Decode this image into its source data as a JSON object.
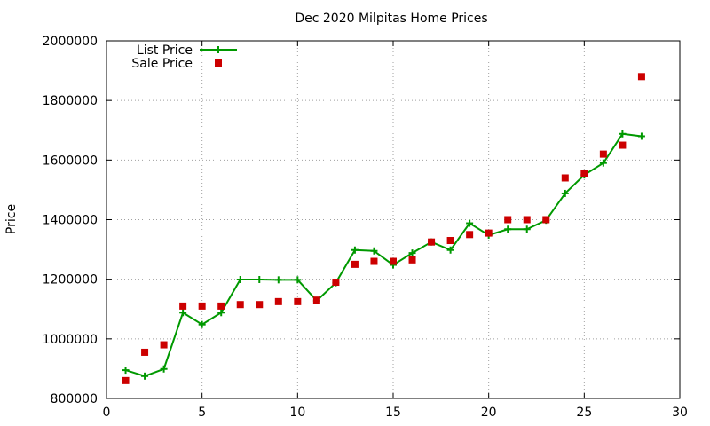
{
  "chart_data": {
    "type": "line",
    "title": "Dec 2020 Milpitas Home Prices",
    "xlabel": "",
    "ylabel": "Price",
    "xlim": [
      0,
      30
    ],
    "ylim": [
      800000,
      2000000
    ],
    "x_ticks": [
      0,
      5,
      10,
      15,
      20,
      25,
      30
    ],
    "y_ticks": [
      800000,
      1000000,
      1200000,
      1400000,
      1600000,
      1800000,
      2000000
    ],
    "grid": true,
    "legend_position": "top-left",
    "series": [
      {
        "name": "List Price",
        "style": "line-with-plus-markers",
        "color": "#009900",
        "x": [
          1,
          2,
          3,
          4,
          5,
          6,
          7,
          8,
          9,
          10,
          11,
          12,
          13,
          14,
          15,
          16,
          17,
          18,
          19,
          20,
          21,
          22,
          23,
          24,
          25,
          26,
          27,
          28
        ],
        "values": [
          895000,
          875000,
          899000,
          1088000,
          1048000,
          1088000,
          1199000,
          1199000,
          1198000,
          1198000,
          1128000,
          1188000,
          1298000,
          1295000,
          1248000,
          1288000,
          1325000,
          1298000,
          1388000,
          1348000,
          1368000,
          1368000,
          1398000,
          1488000,
          1550000,
          1590000,
          1688000,
          1680000
        ]
      },
      {
        "name": "Sale Price",
        "style": "square-markers",
        "color": "#cc0000",
        "x": [
          1,
          2,
          3,
          4,
          5,
          6,
          7,
          8,
          9,
          10,
          11,
          12,
          13,
          14,
          15,
          16,
          17,
          18,
          19,
          20,
          21,
          22,
          23,
          24,
          25,
          26,
          27,
          28
        ],
        "values": [
          860000,
          955000,
          980000,
          1110000,
          1110000,
          1110000,
          1115000,
          1115000,
          1125000,
          1125000,
          1130000,
          1190000,
          1250000,
          1260000,
          1260000,
          1265000,
          1325000,
          1330000,
          1350000,
          1355000,
          1400000,
          1400000,
          1400000,
          1540000,
          1555000,
          1620000,
          1650000,
          1880000
        ]
      }
    ]
  }
}
